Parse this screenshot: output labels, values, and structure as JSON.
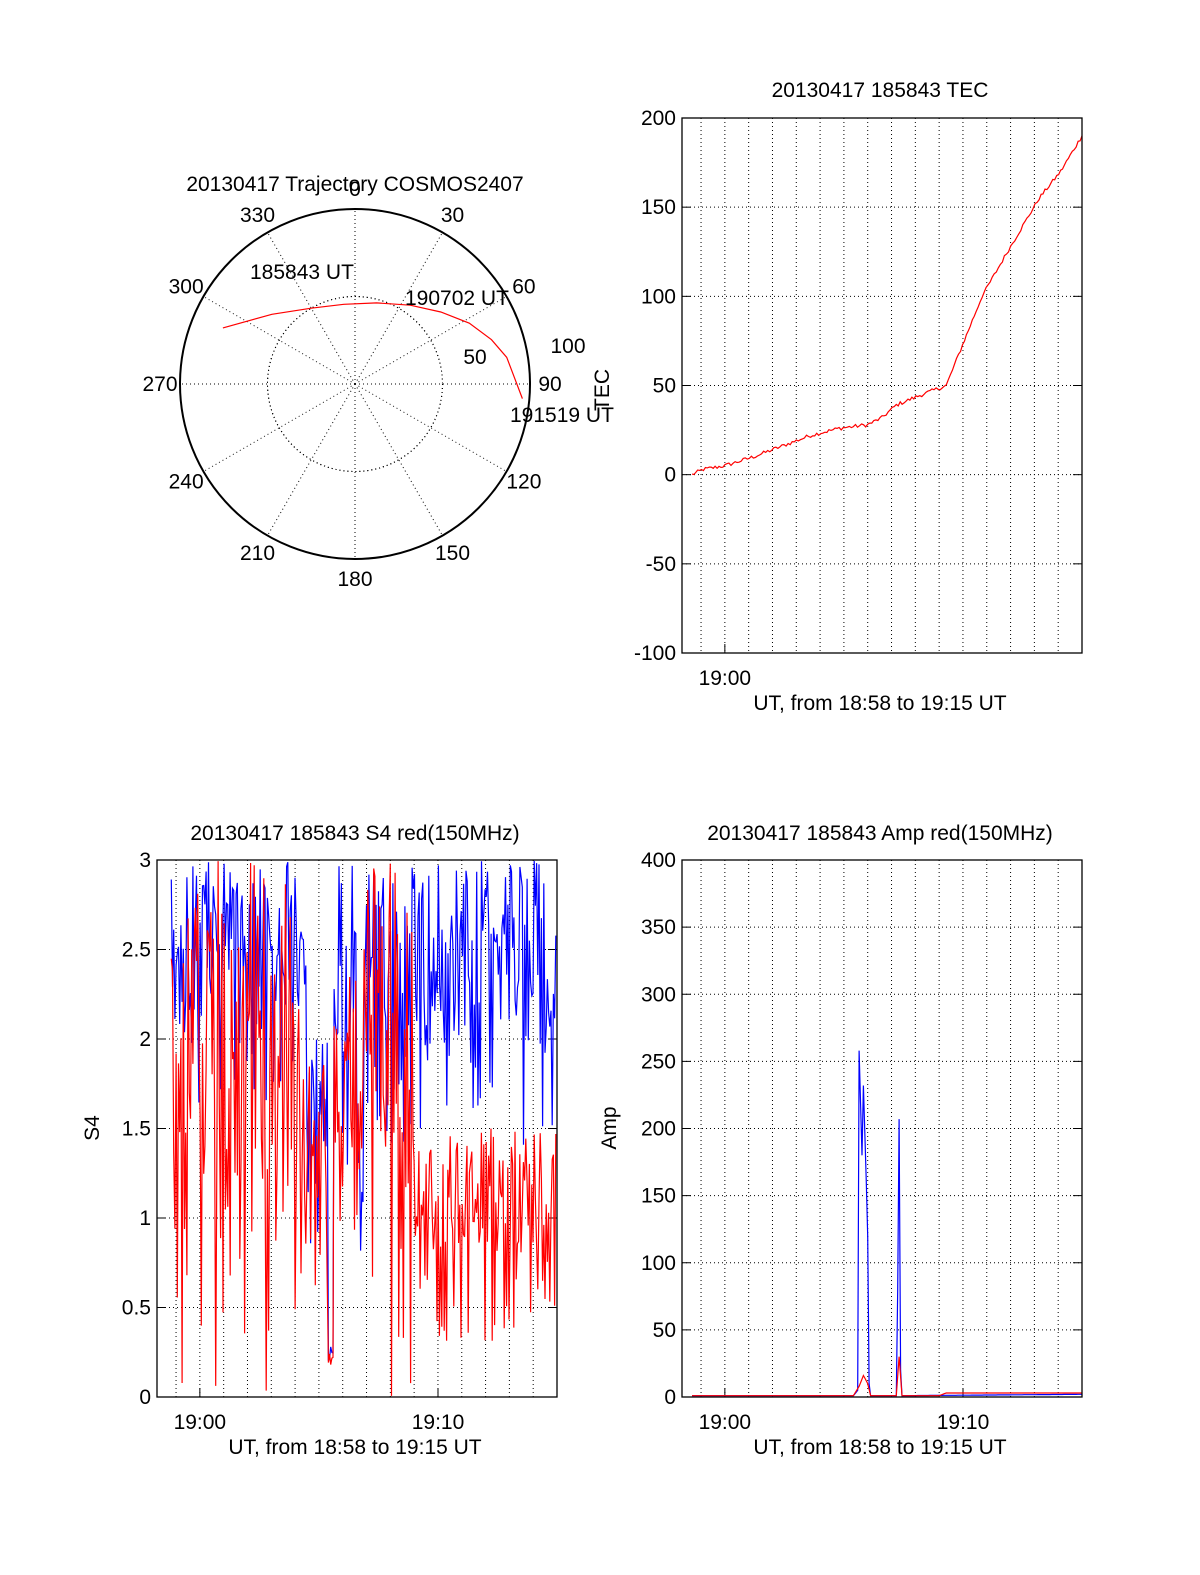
{
  "colors": {
    "primary": "#ff0000",
    "secondary": "#0000ff",
    "axis": "#000000",
    "grid": "#000000"
  },
  "chart_data": [
    {
      "id": "polar",
      "type": "scatter",
      "subtype": "polar-trajectory",
      "title": "20130417 Trajectory COSMOS2407",
      "azimuth_labels": [
        "0",
        "30",
        "60",
        "90",
        "120",
        "150",
        "180",
        "210",
        "240",
        "270",
        "300",
        "330"
      ],
      "zenith_labels": [
        "50",
        "100"
      ],
      "grid": true,
      "points": [
        {
          "az": 293,
          "zen": 82
        },
        {
          "az": 310,
          "zen": 62
        },
        {
          "az": 330,
          "zen": 50
        },
        {
          "az": 352,
          "zen": 46
        },
        {
          "az": 15,
          "zen": 48
        },
        {
          "az": 35,
          "zen": 55
        },
        {
          "az": 50,
          "zen": 64
        },
        {
          "az": 62,
          "zen": 74
        },
        {
          "az": 72,
          "zen": 82
        },
        {
          "az": 80,
          "zen": 88
        },
        {
          "az": 95,
          "zen": 96
        }
      ],
      "time_labels": [
        {
          "text": "185843 UT",
          "az": 320,
          "zen": 50
        },
        {
          "text": "190702 UT",
          "az": 52,
          "zen": 75
        },
        {
          "text": "191519 UT",
          "az": 97,
          "zen": 100
        }
      ],
      "extra_text": "TEC"
    },
    {
      "id": "tec",
      "type": "line",
      "title": "20130417 185843 TEC",
      "ylabel": "",
      "xlabel": "UT, from 18:58 to 19:15 UT",
      "xlim": [
        18.97,
        19.25
      ],
      "ylim": [
        -100,
        200
      ],
      "yticks": [
        -100,
        -50,
        0,
        50,
        100,
        150,
        200
      ],
      "xticks": [
        {
          "value": 19.0,
          "label": "19:00"
        }
      ],
      "grid": true,
      "series": [
        {
          "color": "#ff0000",
          "x": [
            18.977,
            18.985,
            19.0,
            19.02,
            19.04,
            19.06,
            19.08,
            19.1,
            19.11,
            19.12,
            19.135,
            19.145,
            19.155,
            19.165,
            19.18,
            19.2,
            19.22,
            19.235,
            19.25
          ],
          "y": [
            0,
            3,
            5,
            10,
            16,
            22,
            26,
            28,
            32,
            39,
            44,
            47,
            50,
            70,
            100,
            128,
            155,
            170,
            190
          ]
        }
      ]
    },
    {
      "id": "s4",
      "type": "line",
      "title": "20130417 185843 S4 red(150MHz)",
      "ylabel": "S4",
      "xlabel": "UT, from 18:58 to 19:15 UT",
      "xlim": [
        18.97,
        19.25
      ],
      "ylim": [
        0,
        3
      ],
      "yticks": [
        0,
        0.5,
        1,
        1.5,
        2,
        2.5,
        3
      ],
      "ytick_labels": [
        "0",
        "0.5",
        "1",
        "1.5",
        "2",
        "2.5",
        "3"
      ],
      "xticks": [
        {
          "value": 19.0,
          "label": "19:00"
        },
        {
          "value": 19.1667,
          "label": "19:10"
        }
      ],
      "grid": true,
      "series": [
        {
          "color": "#0000ff",
          "mode": "noise",
          "segments": [
            {
              "x0": 18.98,
              "x1": 19.075,
              "lo": 1.6,
              "hi": 3.0
            },
            {
              "x0": 19.075,
              "x1": 19.09,
              "lo": 0.8,
              "hi": 2.0
            },
            {
              "x0": 19.09,
              "x1": 19.094,
              "lo": 0.05,
              "hi": 0.3
            },
            {
              "x0": 19.094,
              "x1": 19.11,
              "lo": 1.2,
              "hi": 3.0
            },
            {
              "x0": 19.11,
              "x1": 19.115,
              "lo": 0.8,
              "hi": 1.5
            },
            {
              "x0": 19.115,
              "x1": 19.25,
              "lo": 1.4,
              "hi": 3.0
            }
          ]
        },
        {
          "color": "#ff0000",
          "mode": "noise",
          "segments": [
            {
              "x0": 18.98,
              "x1": 19.07,
              "lo": 0.0,
              "hi": 3.0
            },
            {
              "x0": 19.07,
              "x1": 19.09,
              "lo": 0.5,
              "hi": 1.9
            },
            {
              "x0": 19.09,
              "x1": 19.094,
              "lo": 0.1,
              "hi": 0.25
            },
            {
              "x0": 19.094,
              "x1": 19.115,
              "lo": 0.8,
              "hi": 2.4
            },
            {
              "x0": 19.115,
              "x1": 19.15,
              "lo": 0.0,
              "hi": 3.0
            },
            {
              "x0": 19.15,
              "x1": 19.25,
              "lo": 0.3,
              "hi": 1.5
            }
          ]
        }
      ]
    },
    {
      "id": "amp",
      "type": "line",
      "title": "20130417 185843 Amp red(150MHz)",
      "ylabel": "Amp",
      "xlabel": "UT, from 18:58 to 19:15 UT",
      "xlim": [
        18.97,
        19.25
      ],
      "ylim": [
        0,
        400
      ],
      "yticks": [
        0,
        50,
        100,
        150,
        200,
        250,
        300,
        350,
        400
      ],
      "xticks": [
        {
          "value": 19.0,
          "label": "19:00"
        },
        {
          "value": 19.1667,
          "label": "19:10"
        }
      ],
      "grid": true,
      "series": [
        {
          "color": "#0000ff",
          "x": [
            18.977,
            19.09,
            19.093,
            19.094,
            19.096,
            19.097,
            19.099,
            19.1,
            19.101,
            19.102,
            19.12,
            19.121,
            19.122,
            19.123,
            19.124,
            19.25
          ],
          "y": [
            1,
            1,
            5,
            258,
            180,
            232,
            160,
            120,
            10,
            1,
            1,
            80,
            207,
            20,
            1,
            2
          ]
        },
        {
          "color": "#ff0000",
          "x": [
            18.977,
            19.09,
            19.094,
            19.097,
            19.1,
            19.102,
            19.12,
            19.122,
            19.124,
            19.15,
            19.155,
            19.25
          ],
          "y": [
            1,
            1,
            8,
            16,
            10,
            1,
            1,
            30,
            1,
            1,
            3,
            3
          ]
        }
      ]
    }
  ]
}
